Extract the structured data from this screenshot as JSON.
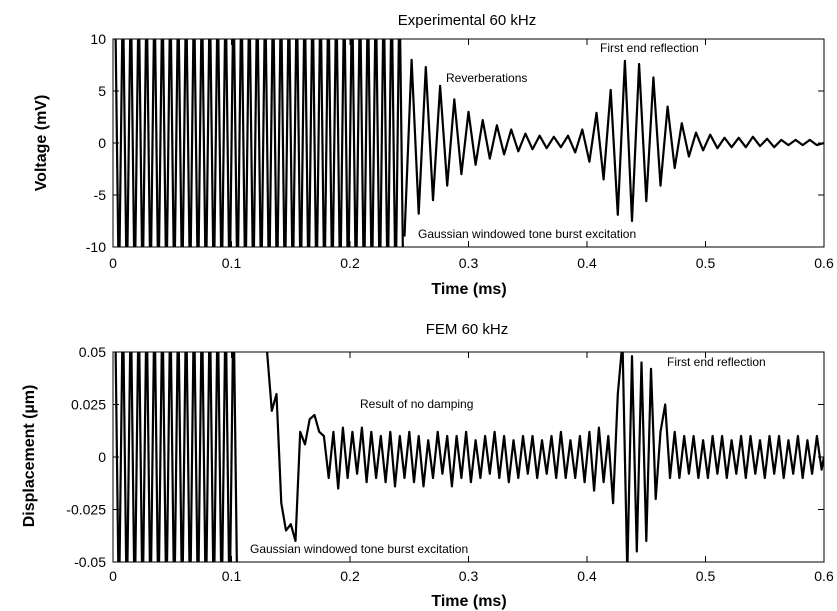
{
  "chart_data": [
    {
      "type": "line",
      "title": "Experimental 60 kHz",
      "xlabel": "Time (ms)",
      "ylabel": "Voltage (mV)",
      "xlim": [
        0,
        0.6
      ],
      "ylim": [
        -10,
        10
      ],
      "xticks": [
        0,
        0.1,
        0.2,
        0.3,
        0.4,
        0.5,
        0.6
      ],
      "xtick_labels": [
        "0",
        "0.1",
        "0.2",
        "0.3",
        "0.4",
        "0.5",
        "0.6"
      ],
      "yticks": [
        10,
        5,
        0,
        -5,
        -10
      ],
      "ytick_labels": [
        "10",
        "5",
        "0",
        "-5",
        "-10"
      ],
      "grid": false,
      "legend": "none",
      "annotations": [
        {
          "text": "Reverberations"
        },
        {
          "text": "First end reflection"
        },
        {
          "text": "Gaussian windowed tone burst excitation"
        }
      ],
      "series": [
        {
          "excitation": {
            "t_start": 0.0,
            "t_end": 0.248,
            "period_ms": 0.00667,
            "amplitude": "clipped beyond ±10"
          },
          "x": [
            0.246,
            0.252,
            0.258,
            0.264,
            0.27,
            0.276,
            0.282,
            0.288,
            0.294,
            0.3,
            0.306,
            0.312,
            0.318,
            0.324,
            0.33,
            0.336,
            0.342,
            0.348,
            0.354,
            0.36,
            0.366,
            0.372,
            0.378,
            0.384,
            0.39,
            0.396,
            0.402,
            0.408,
            0.414,
            0.42,
            0.426,
            0.432,
            0.438,
            0.444,
            0.45,
            0.456,
            0.462,
            0.468,
            0.474,
            0.48,
            0.486,
            0.492,
            0.498,
            0.504,
            0.51,
            0.516,
            0.522,
            0.528,
            0.534,
            0.54,
            0.546,
            0.552,
            0.558,
            0.564,
            0.57,
            0.576,
            0.582,
            0.588,
            0.594,
            0.6
          ],
          "y": [
            -9.0,
            8.0,
            -6.8,
            7.3,
            -5.5,
            5.5,
            -4.1,
            4.2,
            -3.0,
            3.0,
            -2.1,
            2.2,
            -1.5,
            1.7,
            -1.1,
            1.3,
            -0.8,
            0.9,
            -0.6,
            0.7,
            -0.5,
            0.6,
            -0.4,
            0.7,
            -0.9,
            1.3,
            -1.8,
            2.9,
            -3.5,
            5.1,
            -6.9,
            7.9,
            -7.5,
            7.6,
            -5.6,
            6.3,
            -4.1,
            3.5,
            -2.4,
            1.9,
            -1.3,
            1.0,
            -0.7,
            0.8,
            -0.5,
            0.5,
            -0.4,
            0.5,
            -0.4,
            0.6,
            -0.3,
            0.4,
            -0.4,
            0.3,
            -0.2,
            0.3,
            -0.2,
            0.3,
            -0.2,
            0.0
          ]
        }
      ]
    },
    {
      "type": "line",
      "title": "FEM 60 kHz",
      "xlabel": "Time (ms)",
      "ylabel": "Displacement (µm)",
      "xlim": [
        0,
        0.6
      ],
      "ylim": [
        -0.05,
        0.05
      ],
      "xticks": [
        0,
        0.1,
        0.2,
        0.3,
        0.4,
        0.5,
        0.6
      ],
      "xtick_labels": [
        "0",
        "0.1",
        "0.2",
        "0.3",
        "0.4",
        "0.5",
        "0.6"
      ],
      "yticks": [
        0.05,
        0.025,
        0,
        -0.025,
        -0.05
      ],
      "ytick_labels": [
        "0.05",
        "0.025",
        "0",
        "-0.025",
        "-0.05"
      ],
      "grid": false,
      "legend": "none",
      "annotations": [
        {
          "text": "Result of no damping"
        },
        {
          "text": "First end reflection"
        },
        {
          "text": "Gaussian windowed tone burst excitation"
        }
      ],
      "series": [
        {
          "excitation": {
            "t_start": 0.0,
            "t_end": 0.108,
            "period_ms": 0.00667,
            "amplitude": "clipped beyond ±0.05"
          },
          "x": [
            0.13,
            0.134,
            0.138,
            0.142,
            0.146,
            0.15,
            0.154,
            0.158,
            0.162,
            0.166,
            0.17,
            0.174,
            0.178,
            0.182,
            0.186,
            0.19,
            0.194,
            0.198,
            0.202,
            0.206,
            0.21,
            0.214,
            0.218,
            0.222,
            0.226,
            0.23,
            0.234,
            0.238,
            0.242,
            0.246,
            0.25,
            0.254,
            0.258,
            0.262,
            0.266,
            0.27,
            0.274,
            0.278,
            0.282,
            0.286,
            0.29,
            0.294,
            0.298,
            0.302,
            0.306,
            0.31,
            0.314,
            0.318,
            0.322,
            0.326,
            0.33,
            0.334,
            0.338,
            0.342,
            0.346,
            0.35,
            0.354,
            0.358,
            0.362,
            0.366,
            0.37,
            0.374,
            0.378,
            0.382,
            0.386,
            0.39,
            0.394,
            0.398,
            0.402,
            0.406,
            0.41,
            0.414,
            0.418,
            0.422,
            0.426,
            0.43,
            0.434,
            0.438,
            0.442,
            0.446,
            0.45,
            0.454,
            0.458,
            0.462,
            0.466,
            0.47,
            0.474,
            0.478,
            0.482,
            0.486,
            0.49,
            0.494,
            0.498,
            0.502,
            0.506,
            0.51,
            0.514,
            0.518,
            0.522,
            0.526,
            0.53,
            0.534,
            0.538,
            0.542,
            0.546,
            0.55,
            0.554,
            0.558,
            0.562,
            0.566,
            0.57,
            0.574,
            0.578,
            0.582,
            0.586,
            0.59,
            0.594,
            0.598,
            0.6
          ],
          "y": [
            0.05,
            0.022,
            0.03,
            -0.022,
            -0.035,
            -0.032,
            -0.04,
            0.012,
            0.006,
            0.018,
            0.02,
            0.012,
            0.01,
            -0.01,
            0.012,
            -0.015,
            0.014,
            -0.01,
            0.012,
            -0.008,
            0.014,
            -0.012,
            0.012,
            -0.01,
            0.01,
            -0.012,
            0.012,
            -0.014,
            0.01,
            -0.01,
            0.012,
            -0.012,
            0.01,
            -0.014,
            0.008,
            -0.01,
            0.012,
            -0.008,
            0.01,
            -0.014,
            0.01,
            -0.01,
            0.012,
            -0.012,
            0.008,
            -0.01,
            0.01,
            -0.008,
            0.012,
            -0.01,
            0.01,
            -0.012,
            0.008,
            -0.01,
            0.01,
            -0.008,
            0.01,
            -0.01,
            0.008,
            -0.008,
            0.01,
            -0.01,
            0.012,
            -0.01,
            0.008,
            -0.01,
            0.01,
            -0.012,
            0.012,
            -0.016,
            0.014,
            -0.012,
            0.01,
            -0.022,
            0.03,
            0.055,
            -0.055,
            0.048,
            -0.045,
            0.045,
            -0.04,
            0.042,
            -0.02,
            0.012,
            0.025,
            -0.01,
            0.012,
            -0.01,
            0.01,
            -0.008,
            0.01,
            -0.01,
            0.008,
            -0.01,
            0.01,
            -0.008,
            0.01,
            -0.01,
            0.008,
            -0.008,
            0.01,
            -0.01,
            0.01,
            -0.008,
            0.008,
            -0.01,
            0.01,
            -0.008,
            0.01,
            -0.01,
            0.008,
            -0.008,
            0.01,
            -0.01,
            0.008,
            -0.008,
            0.01,
            -0.006,
            0.0
          ]
        }
      ]
    }
  ]
}
